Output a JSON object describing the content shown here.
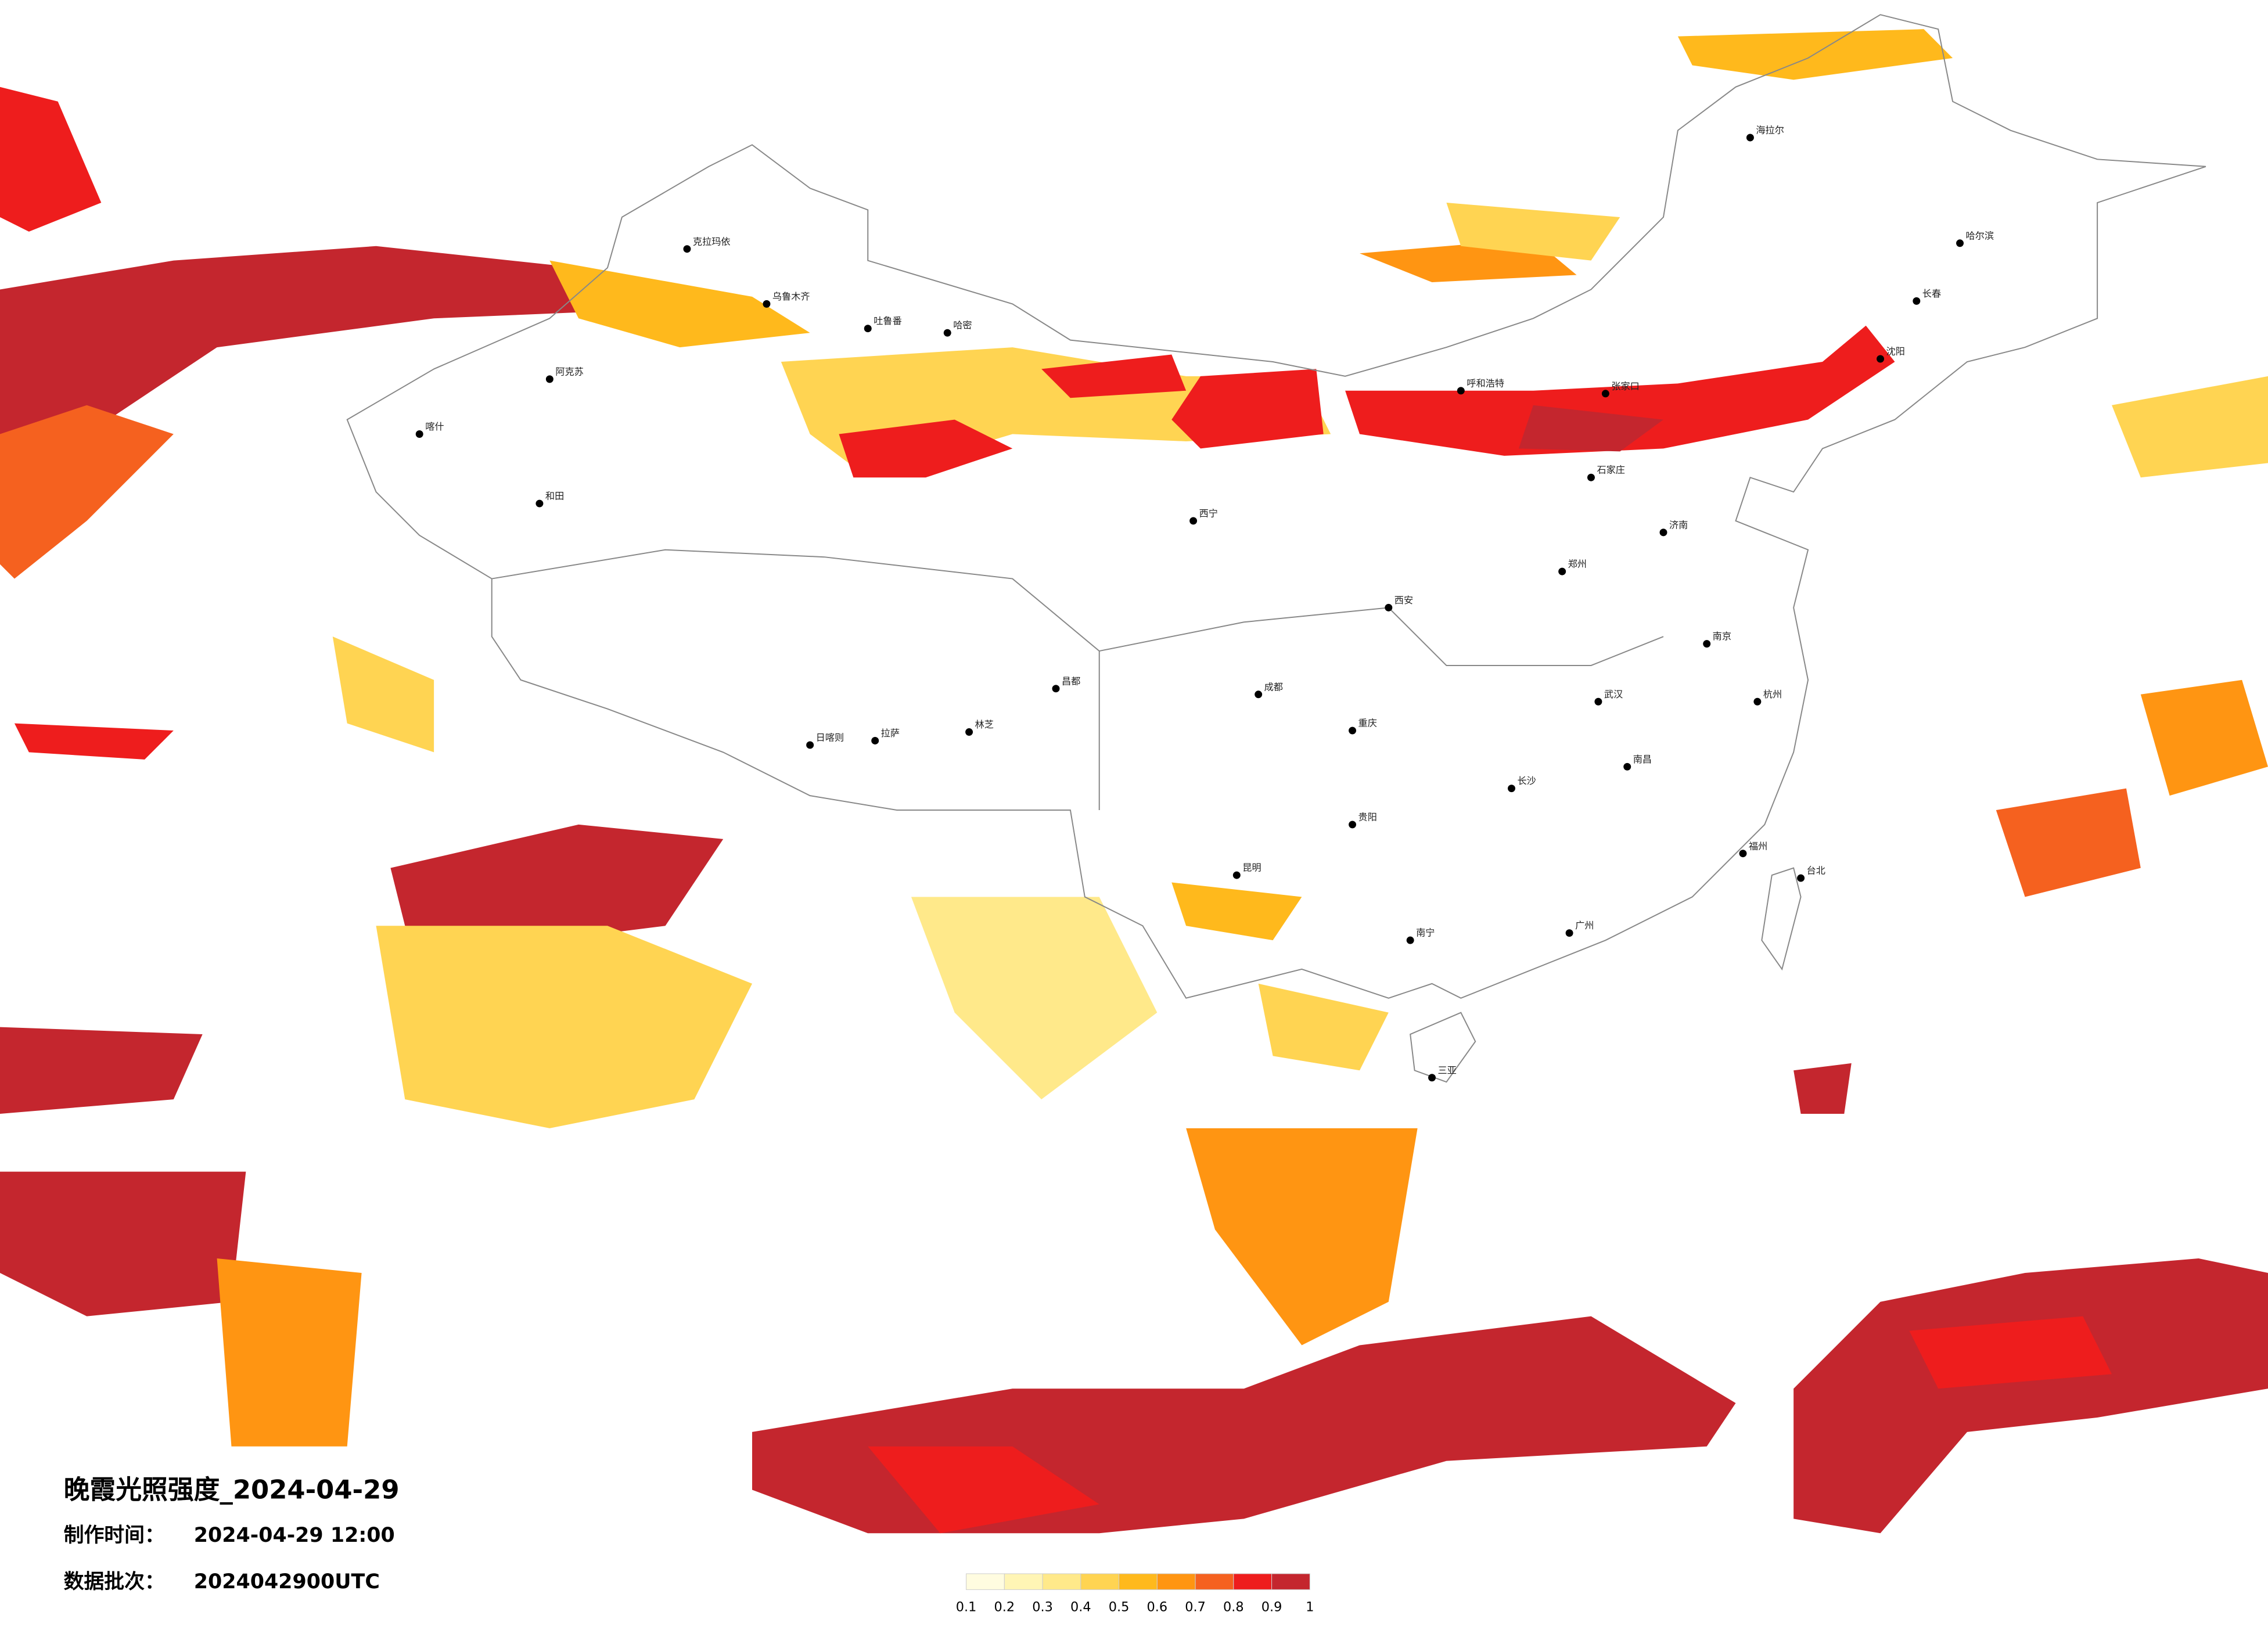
{
  "title": "晚霞光照强度_2024-04-29",
  "made_label": "制作时间：",
  "made_time": "2024-04-29 12:00",
  "batch_label": "数据批次：",
  "batch": "2024042900UTC",
  "legend": {
    "ticks": [
      0.1,
      0.2,
      0.3,
      0.4,
      0.5,
      0.6,
      0.7,
      0.8,
      0.9,
      1
    ],
    "colors": [
      "#fffce0",
      "#fff5b5",
      "#ffe98a",
      "#ffd452",
      "#ffb91c",
      "#ff9512",
      "#f5611f",
      "#ee1d1d",
      "#c4262e"
    ]
  },
  "cities": [
    "克拉玛依",
    "乌鲁木齐",
    "吐鲁番",
    "哈密",
    "阿克苏",
    "喀什",
    "和田",
    "日喀则",
    "拉萨",
    "林芝",
    "昌都",
    "西宁",
    "呼和浩特",
    "海拉尔",
    "哈尔滨",
    "长春",
    "沈阳",
    "张家口",
    "石家庄",
    "济南",
    "郑州",
    "西安",
    "成都",
    "重庆",
    "贵阳",
    "昆明",
    "南宁",
    "广州",
    "长沙",
    "武汉",
    "南昌",
    "福州",
    "杭州",
    "南京",
    "台北",
    "三亚"
  ]
}
